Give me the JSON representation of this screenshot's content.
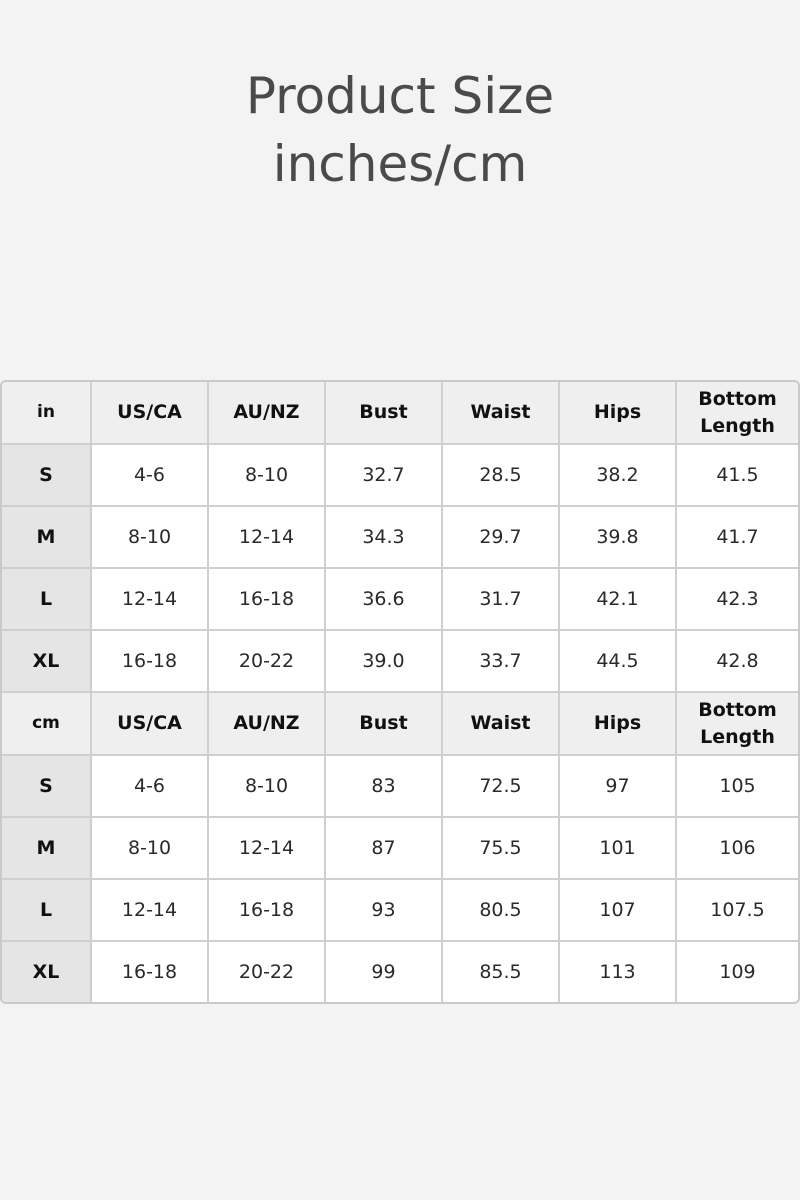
{
  "title": {
    "line1": "Product Size",
    "line2": "inches/cm"
  },
  "sections": [
    {
      "unit": "in",
      "headers": [
        "US/CA",
        "AU/NZ",
        "Bust",
        "Waist",
        "Hips",
        "Bottom Length"
      ],
      "rows": [
        [
          "S",
          "4-6",
          "8-10",
          "32.7",
          "28.5",
          "38.2",
          "41.5"
        ],
        [
          "M",
          "8-10",
          "12-14",
          "34.3",
          "29.7",
          "39.8",
          "41.7"
        ],
        [
          "L",
          "12-14",
          "16-18",
          "36.6",
          "31.7",
          "42.1",
          "42.3"
        ],
        [
          "XL",
          "16-18",
          "20-22",
          "39.0",
          "33.7",
          "44.5",
          "42.8"
        ]
      ]
    },
    {
      "unit": "cm",
      "headers": [
        "US/CA",
        "AU/NZ",
        "Bust",
        "Waist",
        "Hips",
        "Bottom Length"
      ],
      "rows": [
        [
          "S",
          "4-6",
          "8-10",
          "83",
          "72.5",
          "97",
          "105"
        ],
        [
          "M",
          "8-10",
          "12-14",
          "87",
          "75.5",
          "101",
          "106"
        ],
        [
          "L",
          "12-14",
          "16-18",
          "93",
          "80.5",
          "107",
          "107.5"
        ],
        [
          "XL",
          "16-18",
          "20-22",
          "99",
          "85.5",
          "113",
          "109"
        ]
      ]
    }
  ]
}
